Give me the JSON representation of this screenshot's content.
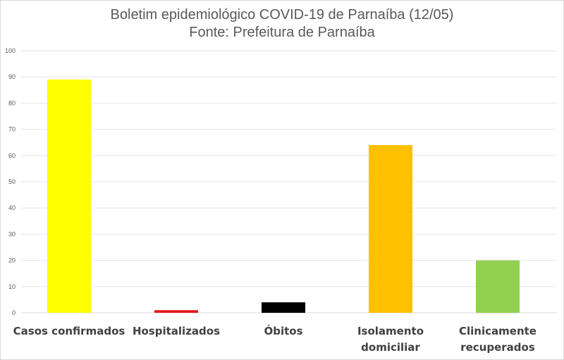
{
  "chart_data": {
    "type": "bar",
    "title": "Boletim epidemiológico COVID-19 de Parnaíba (12/05)",
    "subtitle": "Fonte: Prefeitura de Parnaíba",
    "categories": [
      [
        "Casos confirmados"
      ],
      [
        "Hospitalizados"
      ],
      [
        "Óbitos"
      ],
      [
        "Isolamento",
        "domiciliar"
      ],
      [
        "Clinicamente",
        "recuperados"
      ]
    ],
    "values": [
      89,
      1,
      4,
      64,
      20
    ],
    "colors": [
      "#ffff00",
      "#e31a1c",
      "#000000",
      "#ffc000",
      "#92d050"
    ],
    "xlabel": "",
    "ylabel": "",
    "ylim": [
      0,
      100
    ],
    "yticks": [
      0,
      10,
      20,
      30,
      40,
      50,
      60,
      70,
      80,
      90,
      100
    ],
    "grid": true,
    "legend": "none"
  }
}
